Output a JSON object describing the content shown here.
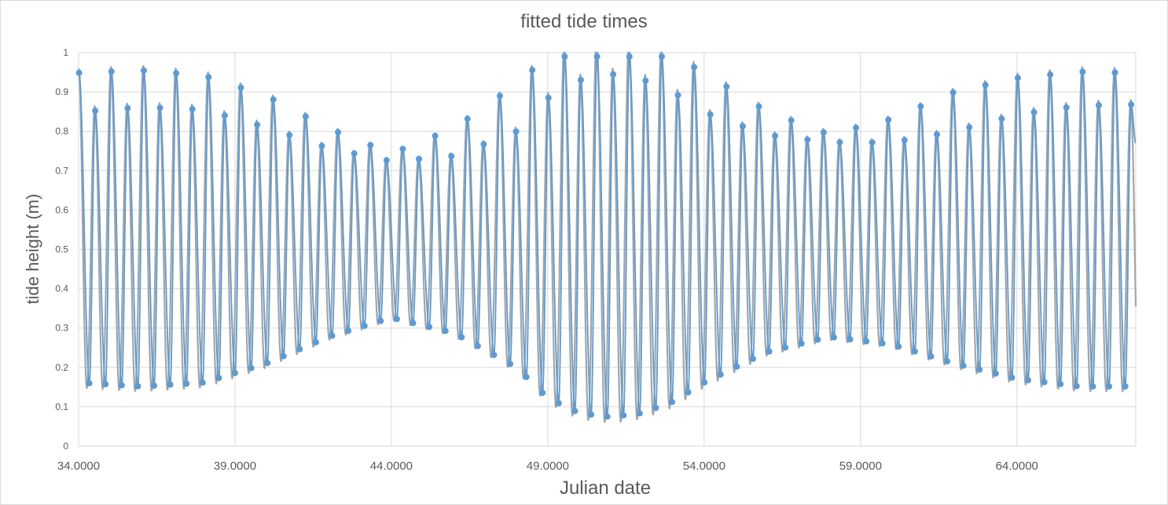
{
  "chart_data": {
    "type": "line",
    "title": "fitted tide times",
    "xlabel": "Julian date",
    "ylabel": "tide height (m)",
    "xlim": [
      34.0,
      67.8
    ],
    "ylim": [
      0,
      1
    ],
    "grid": true,
    "legend": "none",
    "x_ticks": [
      34.0,
      39.0,
      44.0,
      49.0,
      54.0,
      59.0,
      64.0
    ],
    "x_tick_labels": [
      "34.0000",
      "39.0000",
      "44.0000",
      "49.0000",
      "54.0000",
      "59.0000",
      "64.0000"
    ],
    "y_ticks": [
      0,
      0.1,
      0.2,
      0.3,
      0.4,
      0.5,
      0.6,
      0.7,
      0.8,
      0.9,
      1
    ],
    "y_tick_labels": [
      "0",
      "0.1",
      "0.2",
      "0.3",
      "0.4",
      "0.5",
      "0.6",
      "0.7",
      "0.8",
      "0.9",
      "1"
    ],
    "colors": {
      "curve": "#a5a5a5",
      "extrema": "#5b9bd5",
      "grid": "#d9d9d9",
      "text": "#595959"
    },
    "series": [
      {
        "style": "smooth gray line",
        "model": {
          "mean": 0.53,
          "tidal_period_days": 0.5175,
          "phase_zero_day": 34.0,
          "envelope_days": [
            34.0,
            36.0,
            38.0,
            40.0,
            42.0,
            44.0,
            46.0,
            48.0,
            49.0,
            50.0,
            51.0,
            52.0,
            53.0,
            54.0,
            56.0,
            58.0,
            60.0,
            62.0,
            64.0,
            66.0,
            67.8
          ],
          "envelope_amp": [
            0.38,
            0.39,
            0.38,
            0.33,
            0.26,
            0.21,
            0.25,
            0.34,
            0.42,
            0.46,
            0.47,
            0.46,
            0.43,
            0.38,
            0.3,
            0.26,
            0.28,
            0.33,
            0.37,
            0.39,
            0.39
          ],
          "diurnal_days": [
            34.0,
            40.0,
            44.0,
            48.0,
            51.0,
            54.0,
            58.0,
            62.0,
            67.8
          ],
          "diurnal_amp": [
            0.05,
            0.04,
            0.01,
            0.06,
            0.04,
            0.05,
            0.01,
            0.05,
            0.04
          ]
        }
      },
      {
        "style": "blue line with markers at fitted high and low waters",
        "points": "fitted extrema of the gray model curve"
      }
    ]
  }
}
